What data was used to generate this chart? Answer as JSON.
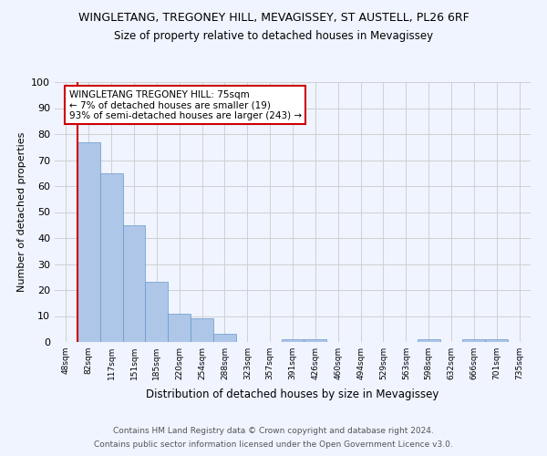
{
  "title1": "WINGLETANG, TREGONEY HILL, MEVAGISSEY, ST AUSTELL, PL26 6RF",
  "title2": "Size of property relative to detached houses in Mevagissey",
  "xlabel": "Distribution of detached houses by size in Mevagissey",
  "ylabel": "Number of detached properties",
  "footer1": "Contains HM Land Registry data © Crown copyright and database right 2024.",
  "footer2": "Contains public sector information licensed under the Open Government Licence v3.0.",
  "bin_labels": [
    "48sqm",
    "82sqm",
    "117sqm",
    "151sqm",
    "185sqm",
    "220sqm",
    "254sqm",
    "288sqm",
    "323sqm",
    "357sqm",
    "391sqm",
    "426sqm",
    "460sqm",
    "494sqm",
    "529sqm",
    "563sqm",
    "598sqm",
    "632sqm",
    "666sqm",
    "701sqm",
    "735sqm"
  ],
  "bar_values": [
    0,
    77,
    65,
    45,
    23,
    11,
    9,
    3,
    0,
    0,
    1,
    1,
    0,
    0,
    0,
    0,
    1,
    0,
    1,
    1,
    0
  ],
  "bar_color": "#aec6e8",
  "bar_edge_color": "#6699cc",
  "annotation_text": "WINGLETANG TREGONEY HILL: 75sqm\n← 7% of detached houses are smaller (19)\n93% of semi-detached houses are larger (243) →",
  "annotation_box_color": "#ffffff",
  "annotation_box_edge": "#cc0000",
  "red_line_color": "#cc0000",
  "ylim": [
    0,
    100
  ],
  "yticks": [
    0,
    10,
    20,
    30,
    40,
    50,
    60,
    70,
    80,
    90,
    100
  ],
  "grid_color": "#d0d0d0",
  "bg_color": "#f0f4ff"
}
